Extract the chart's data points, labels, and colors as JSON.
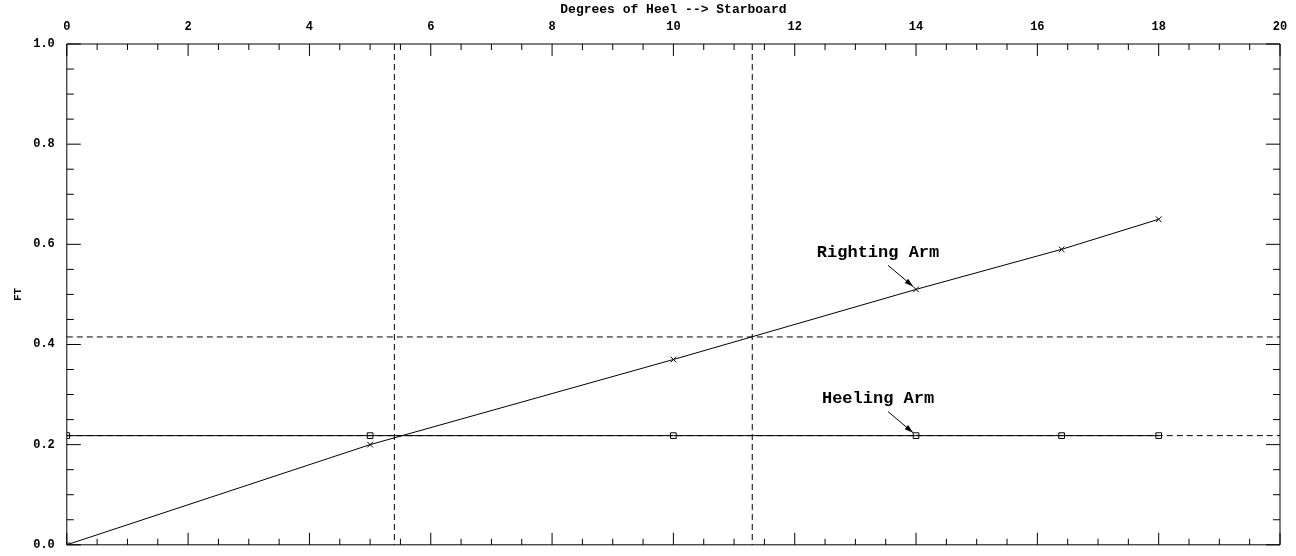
{
  "chart_data": {
    "type": "line",
    "xlabel": "Degrees of Heel --> Starboard",
    "ylabel": "FT",
    "xlim": [
      0,
      20
    ],
    "ylim": [
      0,
      1
    ],
    "xticks": [
      0,
      {
        "value": 0.5,
        "label": null
      },
      {
        "value": 1,
        "label": null
      },
      {
        "value": 1.5,
        "label": null
      },
      2,
      {
        "value": 2.5,
        "label": null
      },
      {
        "value": 3,
        "label": null
      },
      {
        "value": 3.5,
        "label": null
      },
      4,
      {
        "value": 4.5,
        "label": null
      },
      {
        "value": 5,
        "label": null
      },
      {
        "value": 5.5,
        "label": null
      },
      6,
      {
        "value": 6.5,
        "label": null
      },
      {
        "value": 7,
        "label": null
      },
      {
        "value": 7.5,
        "label": null
      },
      8,
      {
        "value": 8.5,
        "label": null
      },
      {
        "value": 9,
        "label": null
      },
      {
        "value": 9.5,
        "label": null
      },
      10,
      {
        "value": 10.5,
        "label": null
      },
      {
        "value": 11,
        "label": null
      },
      {
        "value": 11.5,
        "label": null
      },
      12,
      {
        "value": 12.5,
        "label": null
      },
      {
        "value": 13,
        "label": null
      },
      {
        "value": 13.5,
        "label": null
      },
      14,
      {
        "value": 14.5,
        "label": null
      },
      {
        "value": 15,
        "label": null
      },
      {
        "value": 15.5,
        "label": null
      },
      16,
      {
        "value": 16.5,
        "label": null
      },
      {
        "value": 17,
        "label": null
      },
      {
        "value": 17.5,
        "label": null
      },
      18,
      {
        "value": 18.5,
        "label": null
      },
      {
        "value": 19,
        "label": null
      },
      {
        "value": 19.5,
        "label": null
      },
      20
    ],
    "yticks": [
      {
        "value": 0,
        "label": "0.0"
      },
      {
        "value": 0.05,
        "label": null
      },
      {
        "value": 0.1,
        "label": null
      },
      {
        "value": 0.15,
        "label": null
      },
      {
        "value": 0.2,
        "label": "0.2"
      },
      {
        "value": 0.25,
        "label": null
      },
      {
        "value": 0.3,
        "label": null
      },
      {
        "value": 0.35,
        "label": null
      },
      {
        "value": 0.4,
        "label": "0.4"
      },
      {
        "value": 0.45,
        "label": null
      },
      {
        "value": 0.5,
        "label": null
      },
      {
        "value": 0.55,
        "label": null
      },
      {
        "value": 0.6,
        "label": "0.6"
      },
      {
        "value": 0.65,
        "label": null
      },
      {
        "value": 0.7,
        "label": null
      },
      {
        "value": 0.75,
        "label": null
      },
      {
        "value": 0.8,
        "label": "0.8"
      },
      {
        "value": 0.85,
        "label": null
      },
      {
        "value": 0.9,
        "label": null
      },
      {
        "value": 0.95,
        "label": null
      },
      {
        "value": 1,
        "label": "1.0"
      }
    ],
    "tick_labels": "y x",
    "grid": false,
    "legend": false,
    "line_style": "solid",
    "series": [
      {
        "color": "#000000",
        "marker": "cross",
        "x": [
          0,
          5,
          10,
          14,
          16.4,
          18
        ],
        "values": [
          0,
          0.2,
          0.37,
          0.51,
          0.59,
          0.65
        ]
      },
      {
        "color": "#000000",
        "marker": "square",
        "x": [
          0,
          5,
          10,
          14,
          16.4,
          18
        ],
        "values": [
          0.218,
          0.218,
          0.218,
          0.218,
          0.218,
          0.218
        ]
      }
    ],
    "ref_lines": [
      {
        "axis": "y",
        "value": 0.415,
        "line_style": "dashed"
      },
      {
        "axis": "y",
        "value": 0.218,
        "line_style": "dashed"
      },
      {
        "axis": "x",
        "value": 5.4,
        "line_style": "dashed"
      },
      {
        "axis": "x",
        "value": 11.3,
        "line_style": "dashed"
      }
    ],
    "annotations": [
      {
        "text": "Righting Arm",
        "x": 14,
        "y": 0.51
      },
      {
        "text": "Heeling Arm",
        "x": 14,
        "y": 0.218
      }
    ]
  }
}
